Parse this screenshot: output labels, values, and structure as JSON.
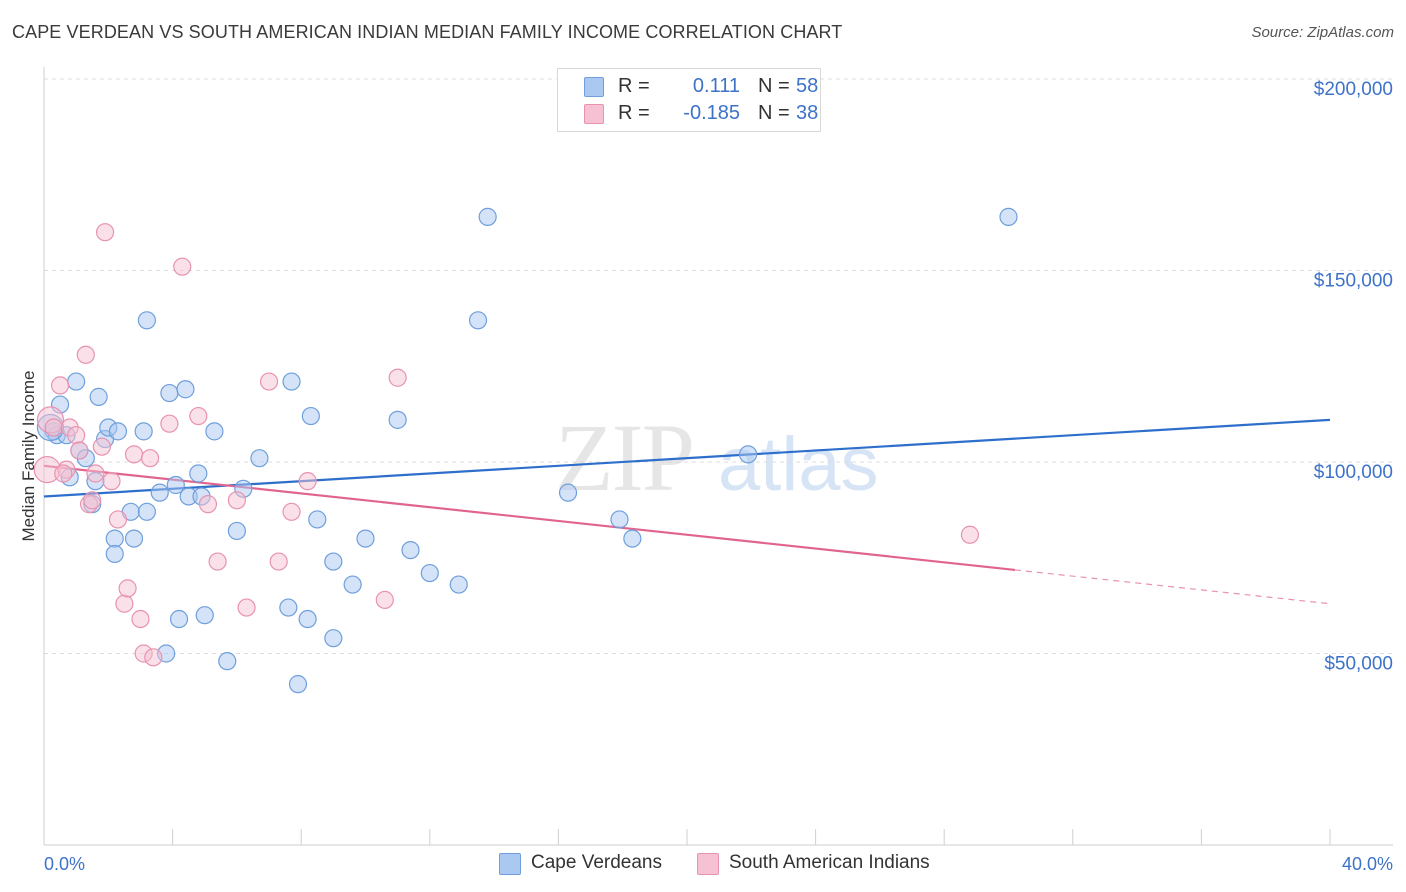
{
  "title": "CAPE VERDEAN VS SOUTH AMERICAN INDIAN MEDIAN FAMILY INCOME CORRELATION CHART",
  "source": "Source: ZipAtlas.com",
  "watermark": {
    "zip": "ZIP",
    "atlas": "atlas"
  },
  "legend": {
    "rows": [
      {
        "r_label": "R =",
        "r_value": "0.111",
        "n_label": "N =",
        "n_value": "58",
        "color": "#aac8f0"
      },
      {
        "r_label": "R =",
        "r_value": "-0.185",
        "n_label": "N =",
        "n_value": "38",
        "color": "#f6b8cc"
      }
    ]
  },
  "bottom_legend": {
    "series1": "Cape Verdeans",
    "series2": "South American Indians"
  },
  "colors": {
    "blue_fill": "#aac8f0",
    "blue_stroke": "#6f9fdc",
    "blue_line": "#2e6fcc",
    "pink_fill": "#f6c1d2",
    "pink_stroke": "#e793b0",
    "pink_line": "#e0648f",
    "accent_text": "#3d72c9"
  },
  "chart_data": {
    "type": "scatter",
    "title": "CAPE VERDEAN VS SOUTH AMERICAN INDIAN MEDIAN FAMILY INCOME CORRELATION CHART",
    "xlabel": "",
    "ylabel": "Median Family Income",
    "xlim": [
      0,
      40
    ],
    "ylim": [
      0,
      200000
    ],
    "x_tick_labels": {
      "min": "0.0%",
      "max": "40.0%"
    },
    "y_ticks": [
      {
        "value": 50000,
        "label": "$50,000"
      },
      {
        "value": 100000,
        "label": "$100,000"
      },
      {
        "value": 150000,
        "label": "$150,000"
      },
      {
        "value": 200000,
        "label": "$200,000"
      }
    ],
    "grid": true,
    "series": [
      {
        "name": "Cape Verdeans",
        "r": 0.111,
        "n": 58,
        "trend": {
          "x": [
            0,
            40
          ],
          "y": [
            91000,
            111000
          ],
          "solid_to": 40
        },
        "points": [
          [
            0.3,
            108000
          ],
          [
            0.4,
            107000
          ],
          [
            0.5,
            115000
          ],
          [
            0.7,
            107000
          ],
          [
            0.8,
            96000
          ],
          [
            1.0,
            121000
          ],
          [
            1.1,
            103000
          ],
          [
            1.3,
            101000
          ],
          [
            1.5,
            89000
          ],
          [
            1.6,
            95000
          ],
          [
            1.7,
            117000
          ],
          [
            1.9,
            106000
          ],
          [
            2.0,
            109000
          ],
          [
            2.2,
            80000
          ],
          [
            2.2,
            76000
          ],
          [
            2.3,
            108000
          ],
          [
            2.7,
            87000
          ],
          [
            2.8,
            80000
          ],
          [
            3.1,
            108000
          ],
          [
            3.2,
            87000
          ],
          [
            3.2,
            137000
          ],
          [
            3.6,
            92000
          ],
          [
            3.8,
            50000
          ],
          [
            3.9,
            118000
          ],
          [
            4.1,
            94000
          ],
          [
            4.2,
            59000
          ],
          [
            4.4,
            119000
          ],
          [
            4.5,
            91000
          ],
          [
            4.8,
            97000
          ],
          [
            4.9,
            91000
          ],
          [
            5.0,
            60000
          ],
          [
            5.3,
            108000
          ],
          [
            5.7,
            48000
          ],
          [
            6.0,
            82000
          ],
          [
            6.2,
            93000
          ],
          [
            6.7,
            101000
          ],
          [
            7.6,
            62000
          ],
          [
            7.7,
            121000
          ],
          [
            7.9,
            42000
          ],
          [
            8.2,
            59000
          ],
          [
            8.3,
            112000
          ],
          [
            8.5,
            85000
          ],
          [
            9.0,
            54000
          ],
          [
            9.0,
            74000
          ],
          [
            9.6,
            68000
          ],
          [
            10.0,
            80000
          ],
          [
            11.0,
            111000
          ],
          [
            11.4,
            77000
          ],
          [
            12.0,
            71000
          ],
          [
            12.9,
            68000
          ],
          [
            13.5,
            137000
          ],
          [
            13.8,
            164000
          ],
          [
            16.3,
            92000
          ],
          [
            17.9,
            85000
          ],
          [
            18.3,
            80000
          ],
          [
            21.9,
            102000
          ],
          [
            30.0,
            164000
          ],
          [
            0.2,
            109000
          ]
        ]
      },
      {
        "name": "South American Indians",
        "r": -0.185,
        "n": 38,
        "trend": {
          "x": [
            0,
            40
          ],
          "y": [
            99000,
            63000
          ],
          "solid_to": 30.2
        },
        "points": [
          [
            0.1,
            98000
          ],
          [
            0.2,
            111000
          ],
          [
            0.3,
            109000
          ],
          [
            0.5,
            120000
          ],
          [
            0.7,
            98000
          ],
          [
            0.8,
            109000
          ],
          [
            1.0,
            107000
          ],
          [
            1.1,
            103000
          ],
          [
            1.3,
            128000
          ],
          [
            1.4,
            89000
          ],
          [
            1.5,
            90000
          ],
          [
            1.6,
            97000
          ],
          [
            1.8,
            104000
          ],
          [
            1.9,
            160000
          ],
          [
            2.1,
            95000
          ],
          [
            2.3,
            85000
          ],
          [
            2.5,
            63000
          ],
          [
            2.6,
            67000
          ],
          [
            2.8,
            102000
          ],
          [
            3.0,
            59000
          ],
          [
            3.1,
            50000
          ],
          [
            3.3,
            101000
          ],
          [
            3.4,
            49000
          ],
          [
            3.9,
            110000
          ],
          [
            4.3,
            151000
          ],
          [
            4.8,
            112000
          ],
          [
            5.1,
            89000
          ],
          [
            5.4,
            74000
          ],
          [
            6.0,
            90000
          ],
          [
            6.3,
            62000
          ],
          [
            7.0,
            121000
          ],
          [
            7.3,
            74000
          ],
          [
            7.7,
            87000
          ],
          [
            8.2,
            95000
          ],
          [
            10.6,
            64000
          ],
          [
            11.0,
            122000
          ],
          [
            28.8,
            81000
          ],
          [
            0.6,
            97000
          ]
        ]
      }
    ]
  }
}
